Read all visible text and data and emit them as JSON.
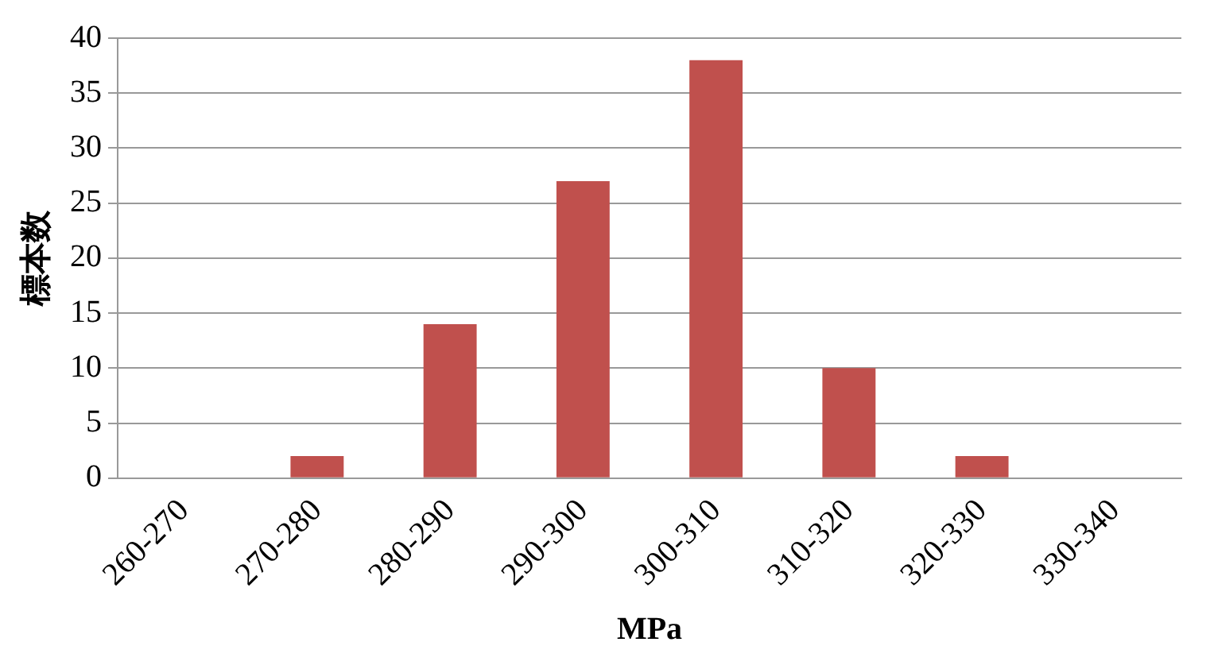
{
  "chart_data": {
    "type": "bar",
    "xlabel": "MPa",
    "ylabel": "標本数",
    "categories": [
      "260-270",
      "270-280",
      "280-290",
      "290-300",
      "300-310",
      "310-320",
      "320-330",
      "330-340"
    ],
    "values": [
      0,
      2,
      14,
      27,
      38,
      10,
      2,
      0
    ],
    "color": "#c0504d",
    "ylim": [
      0,
      40
    ],
    "yticks": [
      0,
      5,
      10,
      15,
      20,
      25,
      30,
      35,
      40
    ],
    "grid": "y",
    "legend": false
  }
}
